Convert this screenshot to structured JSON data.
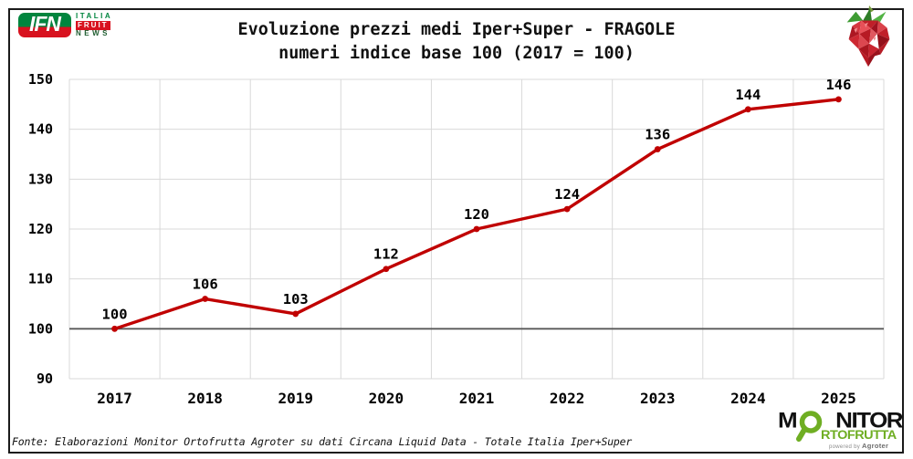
{
  "header": {
    "ifn_logo": {
      "acronym": "IFN",
      "word1": "ITALIA",
      "word2": "FRUIT",
      "word3": "NEWS"
    },
    "title_line1": "Evoluzione prezzi medi Iper+Super - FRAGOLE",
    "title_line2": "numeri indice base 100 (2017 = 100)"
  },
  "chart_data": {
    "type": "line",
    "title": "Evoluzione prezzi medi Iper+Super - FRAGOLE",
    "subtitle": "numeri indice base 100 (2017 = 100)",
    "categories": [
      "2017",
      "2018",
      "2019",
      "2020",
      "2021",
      "2022",
      "2023",
      "2024",
      "2025"
    ],
    "values": [
      100,
      106,
      103,
      112,
      120,
      124,
      136,
      144,
      146
    ],
    "ylim": [
      90,
      150
    ],
    "ytick_step": 10,
    "baseline_value": 100,
    "grid": true,
    "legend": "none",
    "line_color": "#c00000",
    "grid_color": "#d9d9d9",
    "baseline_color": "#595959",
    "tick_label_color": "#000000",
    "value_label_color": "#000000"
  },
  "footer": {
    "source": "Fonte: Elaborazioni Monitor Ortofrutta Agroter su dati Circana Liquid Data - Totale Italia Iper+Super",
    "monitor_logo": {
      "line1_prefix": "M",
      "line1_suffix": "NITOR",
      "line2": "RTOFRUTTA",
      "powered_prefix": "powered by",
      "powered_brand": "Agroter"
    }
  },
  "colors": {
    "accent_red": "#c00000",
    "ifn_green": "#00853e",
    "ifn_red": "#d8121f",
    "monitor_green": "#6fae23",
    "frame_black": "#1a1a1a"
  }
}
